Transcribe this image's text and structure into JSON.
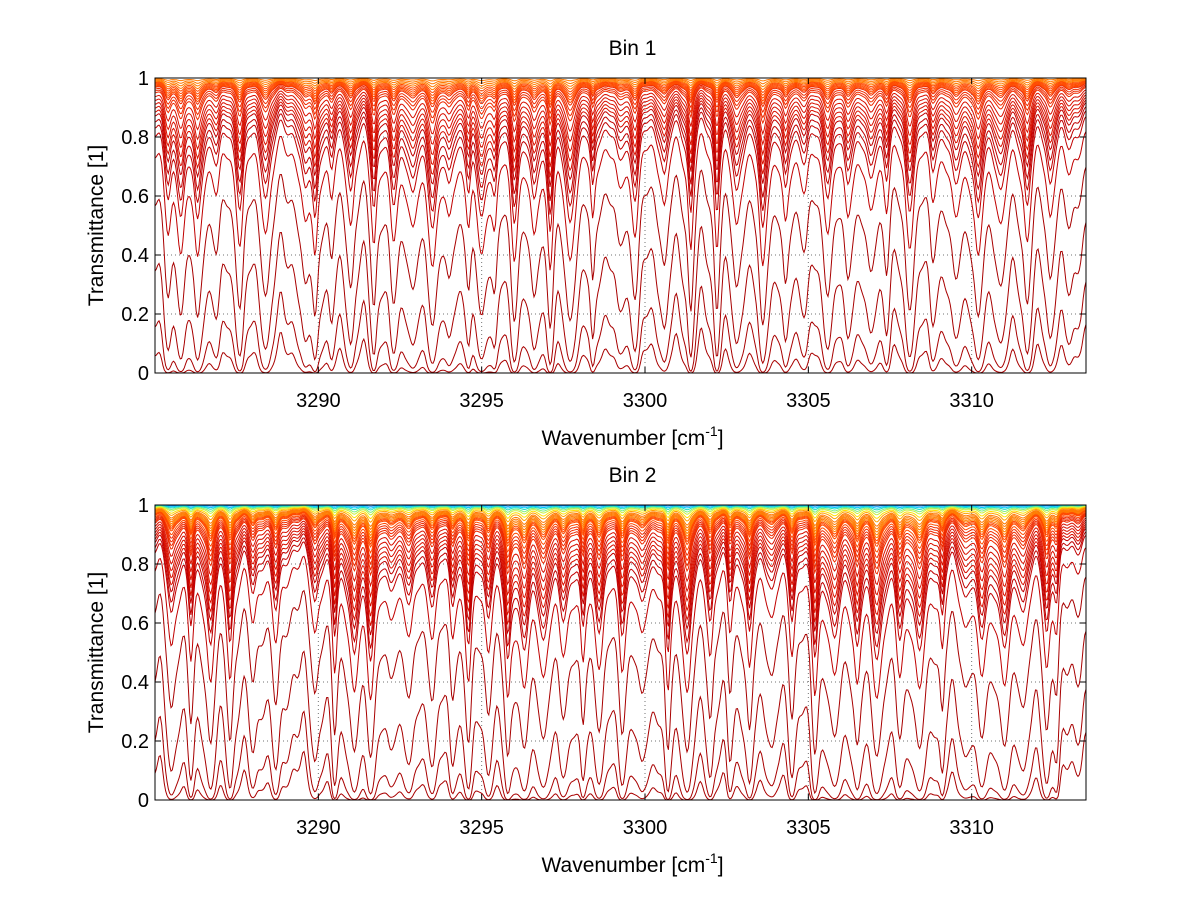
{
  "chart_data": [
    {
      "type": "line",
      "title": "Bin 1",
      "xlabel": "Wavenumber [cm",
      "xlabel_sup": "-1",
      "xlabel_end": "]",
      "ylabel": "Transmittance [1]",
      "xlim": [
        3285,
        3313.5
      ],
      "ylim": [
        0,
        1
      ],
      "xticks": [
        3290,
        3295,
        3300,
        3305,
        3310
      ],
      "xtick_labels": [
        "3290",
        "3295",
        "3300",
        "3305",
        "3310"
      ],
      "yticks": [
        0,
        0.2,
        0.4,
        0.6,
        0.8,
        1
      ],
      "ytick_labels": [
        "0",
        "0.2",
        "0.4",
        "0.6",
        "0.8",
        "1"
      ],
      "grid": true,
      "series_colors": [
        "#ff7a00",
        "#ff4a00",
        "#ee2a00",
        "#d81000",
        "#c00000",
        "#a80000"
      ],
      "series_levels": [
        1.0,
        0.995,
        0.99,
        0.985,
        0.98,
        0.975,
        0.97,
        0.965,
        0.96,
        0.955,
        0.95,
        0.94,
        0.93,
        0.92,
        0.9,
        0.88,
        0.86,
        0.84,
        0.82,
        0.8,
        0.77,
        0.74,
        0.7,
        0.6,
        0.4,
        0.18,
        0.05,
        0.01
      ],
      "absorption_lines": [
        3285.4,
        3285.8,
        3286.3,
        3286.9,
        3287.6,
        3288.4,
        3289.6,
        3289.9,
        3290.4,
        3291.0,
        3291.7,
        3292.3,
        3292.9,
        3293.5,
        3294.0,
        3294.6,
        3295.0,
        3295.4,
        3296.0,
        3296.6,
        3297.1,
        3297.7,
        3298.4,
        3299.2,
        3299.7,
        3300.6,
        3301.4,
        3302.2,
        3302.8,
        3303.6,
        3304.3,
        3304.9,
        3305.6,
        3306.2,
        3306.9,
        3307.4,
        3308.1,
        3308.8,
        3309.5,
        3310.2,
        3310.9,
        3311.7,
        3312.4,
        3313.0
      ]
    },
    {
      "type": "line",
      "title": "Bin 2",
      "xlabel": "Wavenumber [cm",
      "xlabel_sup": "-1",
      "xlabel_end": "]",
      "ylabel": "Transmittance [1]",
      "xlim": [
        3285,
        3313.5
      ],
      "ylim": [
        0,
        1
      ],
      "xticks": [
        3290,
        3295,
        3300,
        3305,
        3310
      ],
      "xtick_labels": [
        "3290",
        "3295",
        "3300",
        "3305",
        "3310"
      ],
      "yticks": [
        0,
        0.2,
        0.4,
        0.6,
        0.8,
        1
      ],
      "ytick_labels": [
        "0",
        "0.2",
        "0.4",
        "0.6",
        "0.8",
        "1"
      ],
      "grid": true,
      "top_band_colors": [
        "#0050ff",
        "#0090ff",
        "#00c8ff",
        "#20e0c0",
        "#80f080",
        "#c8f040",
        "#ffe000",
        "#ffa000"
      ],
      "top_band_levels": [
        1.0,
        0.998,
        0.995,
        0.992,
        0.988,
        0.984,
        0.978,
        0.972
      ],
      "series_colors": [
        "#ff7a00",
        "#ff4a00",
        "#ee2a00",
        "#d81000",
        "#c00000",
        "#a80000"
      ],
      "series_levels": [
        0.965,
        0.96,
        0.955,
        0.95,
        0.945,
        0.94,
        0.935,
        0.93,
        0.92,
        0.91,
        0.9,
        0.89,
        0.88,
        0.86,
        0.84,
        0.82,
        0.8,
        0.78,
        0.76,
        0.73,
        0.7,
        0.6,
        0.4,
        0.16,
        0.04,
        0.008
      ],
      "absorption_lines": [
        3285.5,
        3286.1,
        3286.7,
        3287.3,
        3288.0,
        3288.7,
        3289.9,
        3290.5,
        3291.1,
        3291.6,
        3292.2,
        3292.8,
        3293.5,
        3294.1,
        3294.6,
        3295.2,
        3295.8,
        3296.3,
        3296.9,
        3297.5,
        3298.1,
        3298.6,
        3299.3,
        3299.9,
        3300.7,
        3301.3,
        3302.0,
        3302.6,
        3303.2,
        3303.9,
        3304.5,
        3305.2,
        3305.8,
        3306.5,
        3307.1,
        3307.8,
        3308.4,
        3309.1,
        3309.8,
        3310.3,
        3311.0,
        3311.6,
        3312.3,
        3312.6
      ]
    }
  ]
}
